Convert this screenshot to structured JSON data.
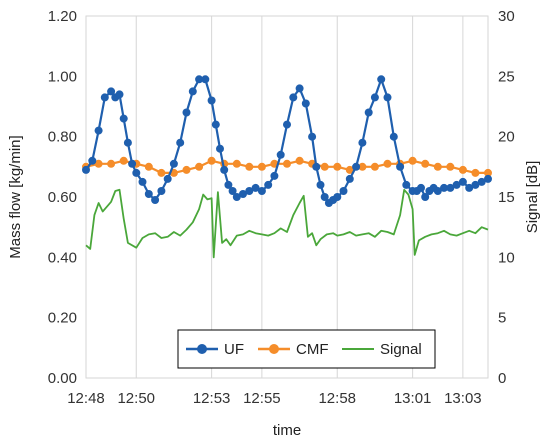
{
  "chart_data": {
    "type": "line",
    "xlabel": "time",
    "ylabel": "Mass flow [kg/min]",
    "y2label": "Signal [dB]",
    "x_range": [
      "12:48",
      "13:04"
    ],
    "x_ticks": [
      "12:48",
      "12:50",
      "12:53",
      "12:55",
      "12:58",
      "13:01",
      "13:03"
    ],
    "ylim": [
      0,
      1.2
    ],
    "y_ticks": [
      "0.00",
      "0.20",
      "0.40",
      "0.60",
      "0.80",
      "1.00",
      "1.20"
    ],
    "y2lim": [
      0,
      30
    ],
    "y2_ticks": [
      "0",
      "5",
      "10",
      "15",
      "20",
      "25",
      "30"
    ],
    "grid": "vertical",
    "legend_position": "bottom-center",
    "series": [
      {
        "name": "UF",
        "axis": "left",
        "color": "#1f5fae",
        "marker": "circle",
        "x": [
          "12:48:00",
          "12:48:15",
          "12:48:30",
          "12:48:45",
          "12:49:00",
          "12:49:10",
          "12:49:20",
          "12:49:30",
          "12:49:40",
          "12:49:50",
          "12:50:00",
          "12:50:15",
          "12:50:30",
          "12:50:45",
          "12:51:00",
          "12:51:15",
          "12:51:30",
          "12:51:45",
          "12:52:00",
          "12:52:15",
          "12:52:30",
          "12:52:45",
          "12:53:00",
          "12:53:10",
          "12:53:20",
          "12:53:30",
          "12:53:40",
          "12:53:50",
          "12:54:00",
          "12:54:15",
          "12:54:30",
          "12:54:45",
          "12:55:00",
          "12:55:15",
          "12:55:30",
          "12:55:45",
          "12:56:00",
          "12:56:15",
          "12:56:30",
          "12:56:45",
          "12:57:00",
          "12:57:10",
          "12:57:20",
          "12:57:30",
          "12:57:40",
          "12:57:50",
          "12:58:00",
          "12:58:15",
          "12:58:30",
          "12:58:45",
          "12:59:00",
          "12:59:15",
          "12:59:30",
          "12:59:45",
          "13:00:00",
          "13:00:15",
          "13:00:30",
          "13:00:45",
          "13:01:00",
          "13:01:10",
          "13:01:20",
          "13:01:30",
          "13:01:40",
          "13:01:50",
          "13:02:00",
          "13:02:15",
          "13:02:30",
          "13:02:45",
          "13:03:00",
          "13:03:15",
          "13:03:30",
          "13:03:45",
          "13:04:00"
        ],
        "values": [
          0.69,
          0.72,
          0.82,
          0.93,
          0.95,
          0.93,
          0.94,
          0.86,
          0.78,
          0.71,
          0.68,
          0.65,
          0.61,
          0.59,
          0.62,
          0.66,
          0.71,
          0.78,
          0.88,
          0.95,
          0.99,
          0.99,
          0.92,
          0.84,
          0.76,
          0.69,
          0.64,
          0.62,
          0.6,
          0.61,
          0.62,
          0.63,
          0.62,
          0.64,
          0.67,
          0.74,
          0.84,
          0.93,
          0.96,
          0.91,
          0.8,
          0.7,
          0.64,
          0.6,
          0.58,
          0.59,
          0.6,
          0.62,
          0.66,
          0.7,
          0.78,
          0.88,
          0.93,
          0.99,
          0.93,
          0.8,
          0.7,
          0.64,
          0.62,
          0.62,
          0.63,
          0.6,
          0.62,
          0.63,
          0.62,
          0.63,
          0.63,
          0.64,
          0.65,
          0.63,
          0.64,
          0.65,
          0.66
        ]
      },
      {
        "name": "CMF",
        "axis": "left",
        "color": "#f58d2a",
        "marker": "circle",
        "x": [
          "12:48:00",
          "12:48:30",
          "12:49:00",
          "12:49:30",
          "12:50:00",
          "12:50:30",
          "12:51:00",
          "12:51:30",
          "12:52:00",
          "12:52:30",
          "12:53:00",
          "12:53:30",
          "12:54:00",
          "12:54:30",
          "12:55:00",
          "12:55:30",
          "12:56:00",
          "12:56:30",
          "12:57:00",
          "12:57:30",
          "12:58:00",
          "12:58:30",
          "12:59:00",
          "12:59:30",
          "13:00:00",
          "13:00:30",
          "13:01:00",
          "13:01:30",
          "13:02:00",
          "13:02:30",
          "13:03:00",
          "13:03:30",
          "13:04:00"
        ],
        "values": [
          0.7,
          0.71,
          0.71,
          0.72,
          0.71,
          0.7,
          0.68,
          0.68,
          0.69,
          0.7,
          0.72,
          0.71,
          0.71,
          0.7,
          0.7,
          0.71,
          0.71,
          0.72,
          0.71,
          0.7,
          0.7,
          0.69,
          0.7,
          0.7,
          0.71,
          0.71,
          0.72,
          0.71,
          0.7,
          0.7,
          0.69,
          0.68,
          0.68
        ]
      },
      {
        "name": "Signal",
        "axis": "right",
        "color": "#4aa73a",
        "marker": "none",
        "x": [
          "12:48:00",
          "12:48:10",
          "12:48:20",
          "12:48:30",
          "12:48:40",
          "12:48:50",
          "12:49:00",
          "12:49:10",
          "12:49:20",
          "12:49:30",
          "12:49:40",
          "12:50:00",
          "12:50:15",
          "12:50:30",
          "12:50:45",
          "12:51:00",
          "12:51:15",
          "12:51:30",
          "12:51:45",
          "12:52:00",
          "12:52:15",
          "12:52:30",
          "12:52:40",
          "12:52:50",
          "12:53:00",
          "12:53:05",
          "12:53:15",
          "12:53:25",
          "12:53:35",
          "12:53:45",
          "12:54:00",
          "12:54:15",
          "12:54:30",
          "12:54:45",
          "12:55:00",
          "12:55:15",
          "12:55:30",
          "12:55:45",
          "12:56:00",
          "12:56:15",
          "12:56:30",
          "12:56:40",
          "12:56:50",
          "12:57:00",
          "12:57:10",
          "12:57:20",
          "12:57:35",
          "12:57:50",
          "12:58:00",
          "12:58:15",
          "12:58:30",
          "12:58:45",
          "12:59:00",
          "12:59:15",
          "12:59:30",
          "12:59:45",
          "13:00:00",
          "13:00:15",
          "13:00:30",
          "13:00:40",
          "13:00:50",
          "13:01:00",
          "13:01:05",
          "13:01:15",
          "13:01:30",
          "13:01:45",
          "13:02:00",
          "13:02:15",
          "13:02:30",
          "13:02:45",
          "13:03:00",
          "13:03:15",
          "13:03:30",
          "13:03:45",
          "13:04:00"
        ],
        "values": [
          11.0,
          10.7,
          13.5,
          14.5,
          13.8,
          14.2,
          14.6,
          15.5,
          15.6,
          13.2,
          11.2,
          10.8,
          11.6,
          11.9,
          12.0,
          11.6,
          11.7,
          12.1,
          11.8,
          12.3,
          12.9,
          14.0,
          15.2,
          14.8,
          14.9,
          10.0,
          15.4,
          11.2,
          11.5,
          11.0,
          11.8,
          11.9,
          12.2,
          12.0,
          11.9,
          11.8,
          12.0,
          12.4,
          12.1,
          13.5,
          14.5,
          15.1,
          11.7,
          12.0,
          11.0,
          11.5,
          11.9,
          12.0,
          11.8,
          11.9,
          12.1,
          11.8,
          11.9,
          12.0,
          11.7,
          12.2,
          12.1,
          11.9,
          13.5,
          15.6,
          15.2,
          14.0,
          10.2,
          11.4,
          11.7,
          11.9,
          12.0,
          12.2,
          11.9,
          11.8,
          12.0,
          12.2,
          12.0,
          12.5,
          12.3
        ]
      }
    ]
  }
}
